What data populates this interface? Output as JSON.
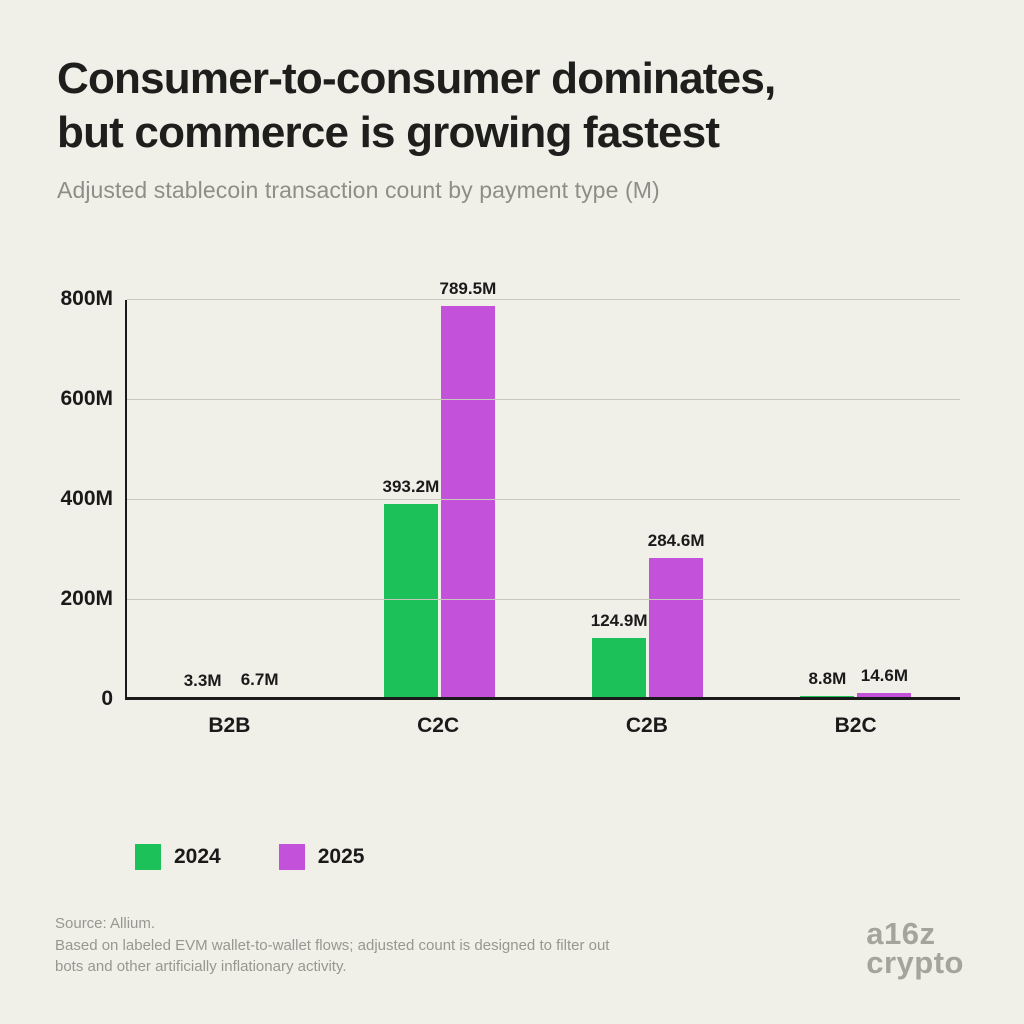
{
  "header": {
    "title_line1": "Consumer-to-consumer dominates,",
    "title_line2": "but commerce is growing fastest",
    "subtitle": "Adjusted stablecoin transaction count by payment type (M)"
  },
  "chart_data": {
    "type": "bar",
    "categories": [
      "B2B",
      "C2C",
      "C2B",
      "B2C"
    ],
    "series": [
      {
        "name": "2024",
        "color": "#1cc15a",
        "values": [
          3.3,
          393.2,
          124.9,
          8.8
        ],
        "labels": [
          "3.3M",
          "393.2M",
          "124.9M",
          "8.8M"
        ]
      },
      {
        "name": "2025",
        "color": "#c351d9",
        "values": [
          6.7,
          789.5,
          284.6,
          14.6
        ],
        "labels": [
          "6.7M",
          "789.5M",
          "284.6M",
          "14.6M"
        ]
      }
    ],
    "y_ticks": [
      "0",
      "200M",
      "400M",
      "600M",
      "800M"
    ],
    "ylim": [
      0,
      800
    ],
    "grid": true,
    "legend_position": "bottom"
  },
  "legend": {
    "items": [
      {
        "label": "2024",
        "color": "#1cc15a"
      },
      {
        "label": "2025",
        "color": "#c351d9"
      }
    ]
  },
  "footer": {
    "source_line1": "Source: Allium.",
    "source_line2": "Based on labeled EVM wallet-to-wallet flows; adjusted count is designed to filter out",
    "source_line3": "bots and other artificially inflationary activity.",
    "logo_line1": "a16z",
    "logo_line2": "crypto"
  }
}
